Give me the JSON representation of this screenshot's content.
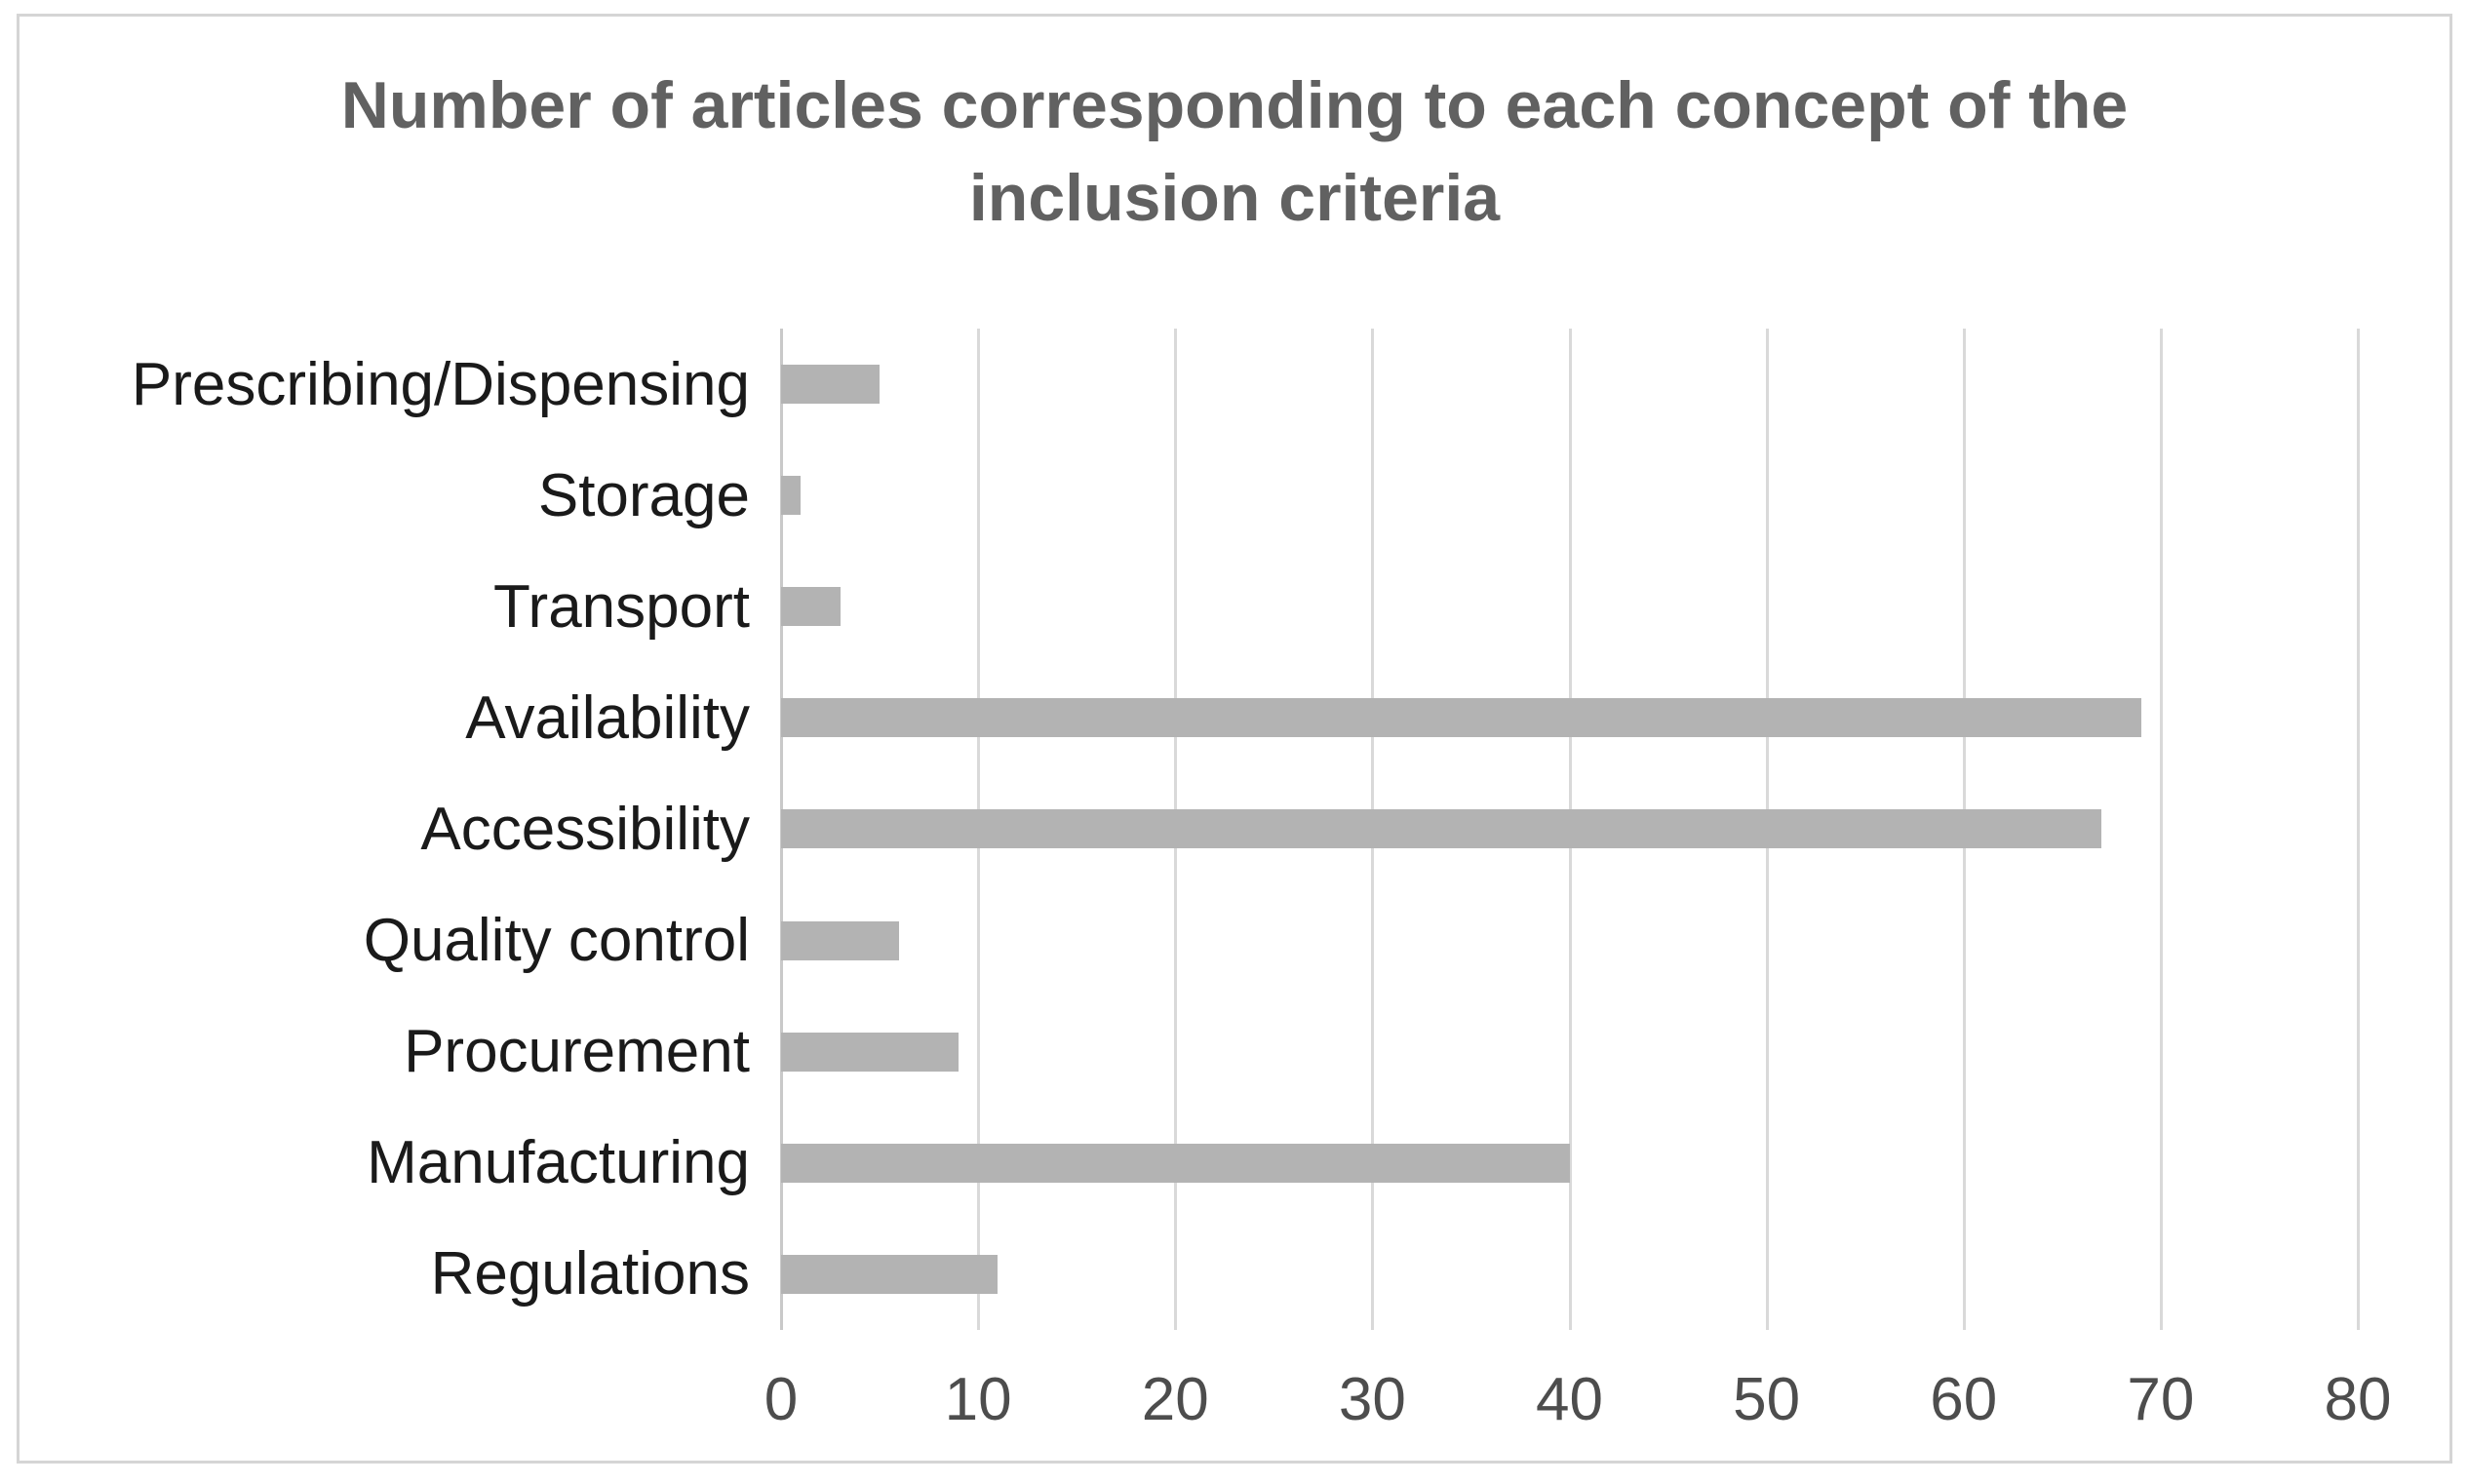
{
  "page": {
    "background_color": "#ffffff",
    "frame_border_color": "#d5d5d5"
  },
  "chart_data": {
    "type": "bar",
    "orientation": "horizontal",
    "title": "Number of articles corresponding to each concept of the inclusion criteria",
    "title_lines": [
      "Number of articles corresponding to each concept of the",
      "inclusion criteria"
    ],
    "categories": [
      "Prescribing/Dispensing",
      "Storage",
      "Transport",
      "Availability",
      "Accessibility",
      "Quality control",
      "Procurement",
      "Manufacturing",
      "Regulations"
    ],
    "values": [
      5,
      1,
      3,
      69,
      67,
      6,
      9,
      40,
      11
    ],
    "xlabel": "",
    "ylabel": "",
    "xlim": [
      0,
      80
    ],
    "xticks": [
      0,
      10,
      20,
      30,
      40,
      50,
      60,
      70,
      80
    ],
    "grid": "vertical-only",
    "legend_position": "none",
    "bar_color": "#b3b3b3",
    "gridline_color": "#d9d9d9",
    "axis_line_color": "#c9c9c9",
    "title_color": "#616161",
    "category_label_color": "#1a1a1a",
    "tick_label_color": "#4d4d4d"
  }
}
